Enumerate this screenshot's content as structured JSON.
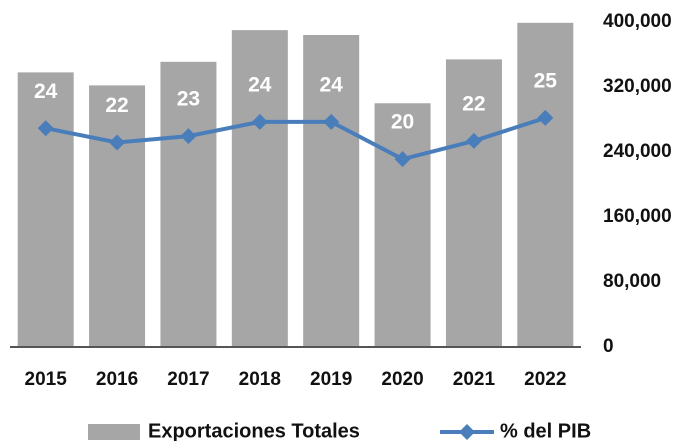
{
  "chart_data": {
    "type": "bar_line",
    "categories": [
      "2015",
      "2016",
      "2017",
      "2018",
      "2019",
      "2020",
      "2021",
      "2022"
    ],
    "series": [
      {
        "name": "Exportaciones Totales",
        "color": "#a6a6a6",
        "values": [
          338000,
          322000,
          351000,
          390000,
          384000,
          300000,
          354000,
          399000
        ]
      },
      {
        "name": "% del PIB",
        "color": "#4a7ebb",
        "axis": "y2",
        "values": [
          23.6,
          21.8,
          22.6,
          24.4,
          24.4,
          19.7,
          22.0,
          24.9
        ],
        "value_labels": [
          "24",
          "22",
          "23",
          "24",
          "24",
          "20",
          "22",
          "25"
        ]
      }
    ],
    "ylim": [
      0,
      400000
    ],
    "yticks": [
      {
        "value": 0,
        "label": "0"
      },
      {
        "value": 80000,
        "label": "80,000"
      },
      {
        "value": 160000,
        "label": "160,000"
      },
      {
        "value": 240000,
        "label": "240,000"
      },
      {
        "value": 320000,
        "label": "320,000"
      },
      {
        "value": 400000,
        "label": "400,000"
      }
    ],
    "y2lim": [
      -4,
      37
    ],
    "legend": "bottom"
  }
}
